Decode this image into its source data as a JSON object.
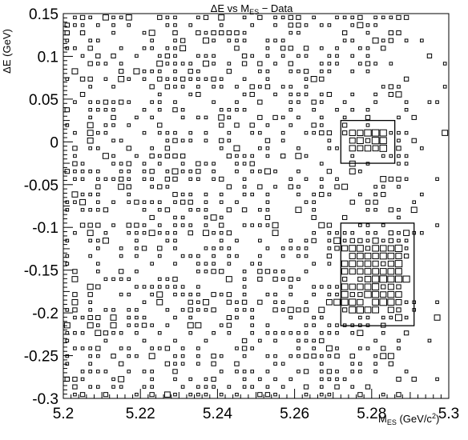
{
  "chart_data": {
    "type": "heatmap",
    "title": {
      "prefix": "ΔE vs M",
      "sub": "ES",
      "suffix": " − Data"
    },
    "xlabel": {
      "main": "M",
      "sub": "ES",
      "units_pre": " (GeV/c",
      "units_sup": "2",
      "units_post": ")"
    },
    "ylabel": "ΔE (GeV)",
    "xlim": [
      5.2,
      5.3
    ],
    "ylim": [
      -0.3,
      0.15
    ],
    "x_ticks": [
      5.2,
      5.22,
      5.24,
      5.26,
      5.28,
      5.3
    ],
    "x_tick_labels": [
      "5.2",
      "5.22",
      "5.24",
      "5.26",
      "5.28",
      "5.3"
    ],
    "y_ticks": [
      0.15,
      0.1,
      0.05,
      0,
      -0.05,
      -0.1,
      -0.15,
      -0.2,
      -0.25,
      -0.3
    ],
    "y_tick_labels": [
      "0.15",
      "0.1",
      "0.05",
      "0",
      "-0.05",
      "-0.1",
      "-0.15",
      "-0.2",
      "-0.25",
      "-0.3"
    ],
    "bins": {
      "nx": 50,
      "ny": 50,
      "note": "box area proportional to count"
    },
    "regions": [
      {
        "name": "signal-box",
        "xmin": 5.272,
        "xmax": 5.286,
        "ymin": -0.025,
        "ymax": 0.025
      },
      {
        "name": "control-box",
        "xmin": 5.272,
        "xmax": 5.291,
        "ymin": -0.215,
        "ymax": -0.095
      }
    ],
    "seed": 1234
  }
}
